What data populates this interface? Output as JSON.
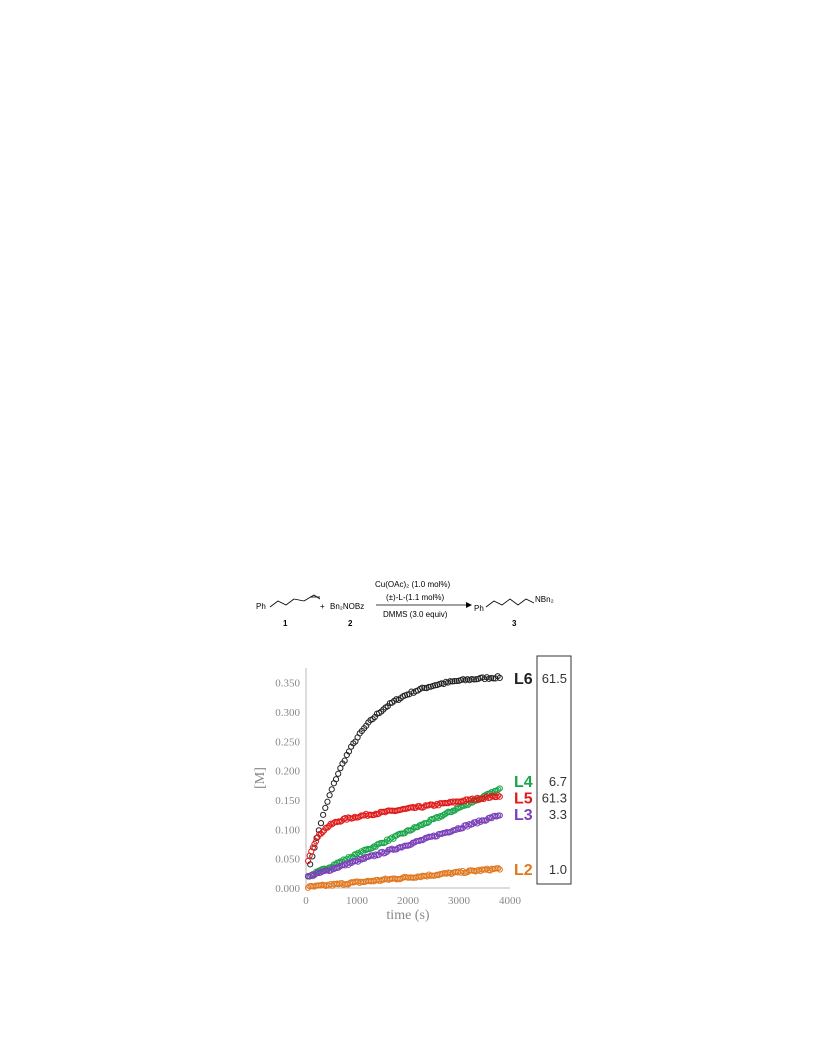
{
  "scheme": {
    "reactant1": "Ph",
    "reactant1_num": "1",
    "plus": "+",
    "reactant2": "Bn₂NOBz",
    "reactant2_num": "2",
    "cond_line1": "Cu(OAc)₂ (1.0 mol%)",
    "cond_line2": "(±)-L-(1.1 mol%)",
    "cond_line3": "DMMS (3.0 equiv)",
    "product_ph": "Ph",
    "product_group": "NBn₂",
    "product_num": "3"
  },
  "chart_data": {
    "type": "scatter",
    "xlabel": "time (s)",
    "ylabel": "[M]",
    "xlim": [
      0,
      4000
    ],
    "ylim": [
      0,
      0.375
    ],
    "xticks": [
      "0",
      "1000",
      "2000",
      "3000",
      "4000"
    ],
    "yticks": [
      "0.000",
      "0.050",
      "0.100",
      "0.150",
      "0.200",
      "0.250",
      "0.300",
      "0.350"
    ],
    "grid": false,
    "series": [
      {
        "name": "L6",
        "ratio": "61.5",
        "color": "#222222",
        "kind": "exp",
        "a": 0.005,
        "b": 0.358,
        "k": 0.0012
      },
      {
        "name": "L4",
        "ratio": "6.7",
        "color": "#1aa54a",
        "kind": "linear",
        "a": 0.018,
        "b": 3.95e-05
      },
      {
        "name": "L5",
        "ratio": "61.3",
        "color": "#e01a1a",
        "kind": "fast-then-linear",
        "a": 0.035,
        "b": 0.075,
        "k": 0.0045,
        "c": 1.25e-05
      },
      {
        "name": "L3",
        "ratio": "3.3",
        "color": "#7b3fb8",
        "kind": "linear",
        "a": 0.018,
        "b": 2.8e-05
      },
      {
        "name": "L2",
        "ratio": "1.0",
        "color": "#e07820",
        "kind": "linear",
        "a": 0.001,
        "b": 8.5e-06
      }
    ],
    "label_y": {
      "L6": 0.358,
      "L4": 0.182,
      "L5": 0.154,
      "L3": 0.126,
      "L2": 0.032
    }
  }
}
